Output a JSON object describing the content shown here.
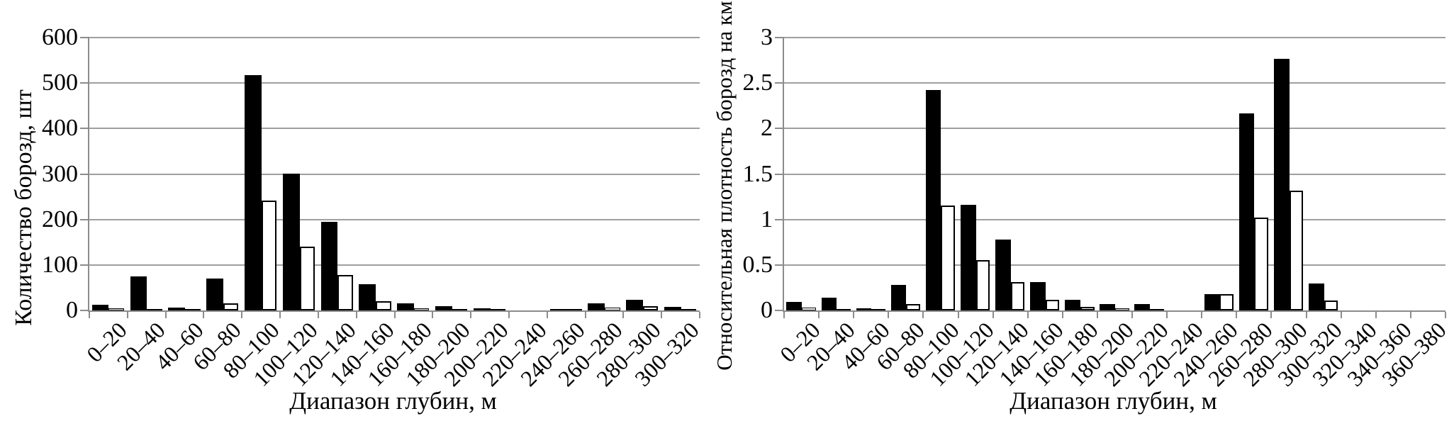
{
  "figure": {
    "background": "#ffffff",
    "text_color": "#000000",
    "gridline_color": "#9f9f9f",
    "axis_color": "#8c8c8c",
    "bar_filled_color": "#000000",
    "bar_outline_fill": "#ffffff",
    "bar_outline_border": "#000000"
  },
  "chart_data": [
    {
      "type": "bar",
      "title": "",
      "ylabel": "Количество борозд, шт",
      "xlabel": "Диапазон глубин, м",
      "ylim": [
        0,
        600
      ],
      "ytick_step": 100,
      "grid": true,
      "legend_position": "none",
      "yticks": [
        {
          "value": 0,
          "label": "0"
        },
        {
          "value": 100,
          "label": "100"
        },
        {
          "value": 200,
          "label": "200"
        },
        {
          "value": 300,
          "label": "300"
        },
        {
          "value": 400,
          "label": "400"
        },
        {
          "value": 500,
          "label": "500"
        },
        {
          "value": 600,
          "label": "600"
        }
      ],
      "categories": [
        "0–20",
        "20–40",
        "40–60",
        "60–80",
        "80–100",
        "100–120",
        "120–140",
        "140–160",
        "160–180",
        "180–200",
        "200–220",
        "220–240",
        "240–260",
        "260–280",
        "280–300",
        "300–320"
      ],
      "series": [
        {
          "name": "filled-black",
          "values": [
            12,
            75,
            7,
            70,
            517,
            301,
            195,
            58,
            15,
            10,
            5,
            0,
            2,
            16,
            23,
            8
          ]
        },
        {
          "name": "outline-white",
          "values": [
            4,
            2,
            3,
            15,
            241,
            140,
            78,
            21,
            5,
            2,
            1,
            0,
            2,
            6,
            10,
            3
          ]
        }
      ]
    },
    {
      "type": "bar",
      "title": "",
      "ylabel": "Относительная плотность борозд на км",
      "xlabel": "Диапазон глубин, м",
      "ylim": [
        0,
        3
      ],
      "ytick_step": 0.5,
      "grid": true,
      "legend_position": "none",
      "yticks": [
        {
          "value": 0,
          "label": "0"
        },
        {
          "value": 0.5,
          "label": "0.5"
        },
        {
          "value": 1,
          "label": "1"
        },
        {
          "value": 1.5,
          "label": "1.5"
        },
        {
          "value": 2,
          "label": "2"
        },
        {
          "value": 2.5,
          "label": "2.5"
        },
        {
          "value": 3,
          "label": "3"
        }
      ],
      "categories": [
        "0–20",
        "20–40",
        "40–60",
        "60–80",
        "80–100",
        "100–120",
        "120–140",
        "140–160",
        "160–180",
        "180–200",
        "200–220",
        "220–240",
        "240–260",
        "260–280",
        "280–300",
        "300–320",
        "320–340",
        "340–360",
        "360–380"
      ],
      "series": [
        {
          "name": "filled-black",
          "values": [
            0.09,
            0.14,
            0.02,
            0.28,
            2.42,
            1.16,
            0.78,
            0.31,
            0.12,
            0.07,
            0.07,
            0,
            0.18,
            2.17,
            2.77,
            0.3,
            0,
            0,
            0
          ]
        },
        {
          "name": "outline-white",
          "values": [
            0.03,
            0.01,
            0.01,
            0.07,
            1.15,
            0.55,
            0.31,
            0.12,
            0.04,
            0.02,
            0.01,
            0,
            0.18,
            1.02,
            1.32,
            0.11,
            0,
            0,
            0
          ]
        }
      ]
    }
  ]
}
